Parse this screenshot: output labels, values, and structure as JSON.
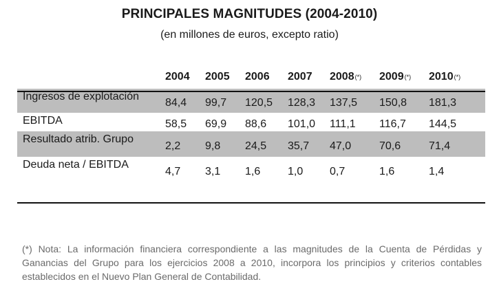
{
  "title": "PRINCIPALES MAGNITUDES (2004-2010)",
  "subtitle": "(en millones de euros, excepto ratio)",
  "table": {
    "headers": [
      {
        "year": "2004",
        "mark": ""
      },
      {
        "year": "2005",
        "mark": ""
      },
      {
        "year": "2006",
        "mark": ""
      },
      {
        "year": "2007",
        "mark": ""
      },
      {
        "year": "2008",
        "mark": "(*)"
      },
      {
        "year": "2009",
        "mark": "(*)"
      },
      {
        "year": "2010",
        "mark": "(*)"
      }
    ],
    "rows": [
      {
        "label": "Ingresos de explotación",
        "shaded": true,
        "values": [
          "84,4",
          "99,7",
          "120,5",
          "128,3",
          "137,5",
          "150,8",
          "181,3"
        ]
      },
      {
        "label": "EBITDA",
        "shaded": false,
        "values": [
          "58,5",
          "69,9",
          "88,6",
          "101,0",
          "111,1",
          "116,7",
          "144,5"
        ]
      },
      {
        "label": "Resultado atrib. Grupo",
        "shaded": true,
        "values": [
          "2,2",
          "9,8",
          "24,5",
          "35,7",
          "47,0",
          "70,6",
          "71,4"
        ]
      },
      {
        "label": "Deuda neta / EBITDA",
        "shaded": false,
        "values": [
          "4,7",
          "3,1",
          "1,6",
          "1,0",
          "0,7",
          "1,6",
          "1,4"
        ]
      }
    ]
  },
  "note": "(*) Nota: La información financiera correspondiente a las magnitudes de la Cuenta de Pérdidas y Ganancias del Grupo para los ejercicios 2008 a 2010, incorpora los principios y criterios contables establecidos en el Nuevo Plan General de Contabilidad.",
  "colors": {
    "row_shade": "#bdbdbd",
    "note_text": "#6a6a6a",
    "rule": "#111111"
  }
}
